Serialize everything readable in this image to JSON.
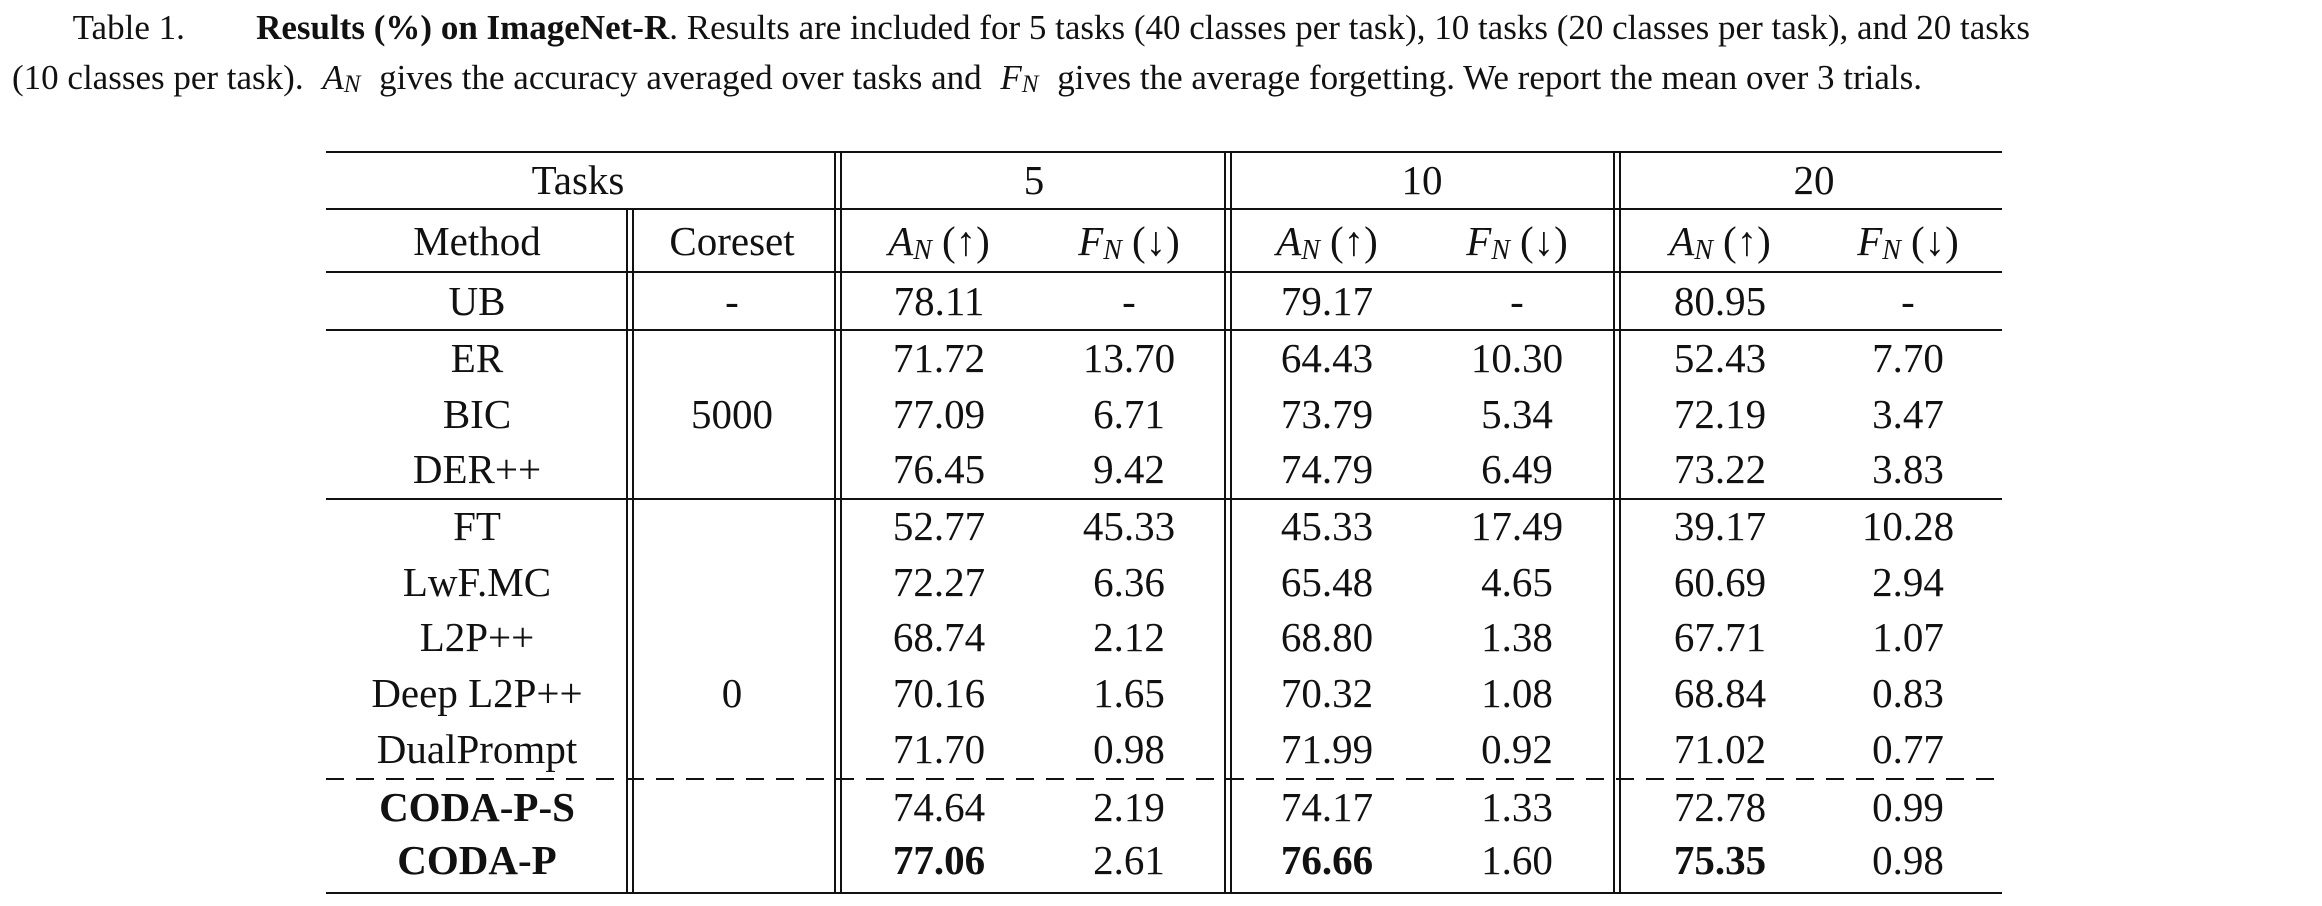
{
  "caption": {
    "line_1": [
      "Table 1.",
      "Results (%) on ImageNet-R",
      ". Results are included for 5 tasks (40 classes per task), 10 tasks (20 classes per task), and 20 tasks"
    ],
    "line_2": [
      "(10 classes per task).",
      "A",
      "N",
      "gives the accuracy averaged over tasks and",
      "F",
      "N",
      "gives the average forgetting. We report the mean over 3 trials."
    ]
  },
  "table": {
    "header": {
      "tasks": "Tasks",
      "task_counts": [
        "5",
        "10",
        "20"
      ],
      "method": "Method",
      "coreset": "Coreset",
      "metrics": [
        {
          "symbol": "A",
          "sub": "N",
          "arrow": "(↑)"
        },
        {
          "symbol": "F",
          "sub": "N",
          "arrow": "(↓)"
        },
        {
          "symbol": "A",
          "sub": "N",
          "arrow": "(↑)"
        },
        {
          "symbol": "F",
          "sub": "N",
          "arrow": "(↓)"
        },
        {
          "symbol": "A",
          "sub": "N",
          "arrow": "(↑)"
        },
        {
          "symbol": "F",
          "sub": "N",
          "arrow": "(↓)"
        }
      ]
    },
    "groups": [
      {
        "coreset": "-",
        "rows": [
          {
            "method": "UB",
            "values": [
              "78.11",
              "-",
              "79.17",
              "-",
              "80.95",
              "-"
            ]
          }
        ]
      },
      {
        "coreset": "5000",
        "rows": [
          {
            "method": "ER",
            "values": [
              "71.72",
              "13.70",
              "64.43",
              "10.30",
              "52.43",
              "7.70"
            ]
          },
          {
            "method": "BIC",
            "values": [
              "77.09",
              "6.71",
              "73.79",
              "5.34",
              "72.19",
              "3.47"
            ]
          },
          {
            "method": "DER++",
            "values": [
              "76.45",
              "9.42",
              "74.79",
              "6.49",
              "73.22",
              "3.83"
            ]
          }
        ]
      },
      {
        "coreset": "0",
        "rows": [
          {
            "method": "FT",
            "values": [
              "52.77",
              "45.33",
              "45.33",
              "17.49",
              "39.17",
              "10.28"
            ]
          },
          {
            "method": "LwF.MC",
            "values": [
              "72.27",
              "6.36",
              "65.48",
              "4.65",
              "60.69",
              "2.94"
            ]
          },
          {
            "method": "L2P++",
            "values": [
              "68.74",
              "2.12",
              "68.80",
              "1.38",
              "67.71",
              "1.07"
            ]
          },
          {
            "method": "Deep L2P++",
            "values": [
              "70.16",
              "1.65",
              "70.32",
              "1.08",
              "68.84",
              "0.83"
            ]
          },
          {
            "method": "DualPrompt",
            "values": [
              "71.70",
              "0.98",
              "71.99",
              "0.92",
              "71.02",
              "0.77"
            ]
          },
          {
            "method": "CODA-P-S",
            "values": [
              "74.64",
              "2.19",
              "74.17",
              "1.33",
              "72.78",
              "0.99"
            ],
            "bold": true,
            "dashed_above": true
          },
          {
            "method": "CODA-P",
            "values": [
              "77.06",
              "2.61",
              "76.66",
              "1.60",
              "75.35",
              "0.98"
            ],
            "bold": true,
            "bold_values": [
              0,
              2,
              4
            ]
          }
        ]
      }
    ]
  }
}
